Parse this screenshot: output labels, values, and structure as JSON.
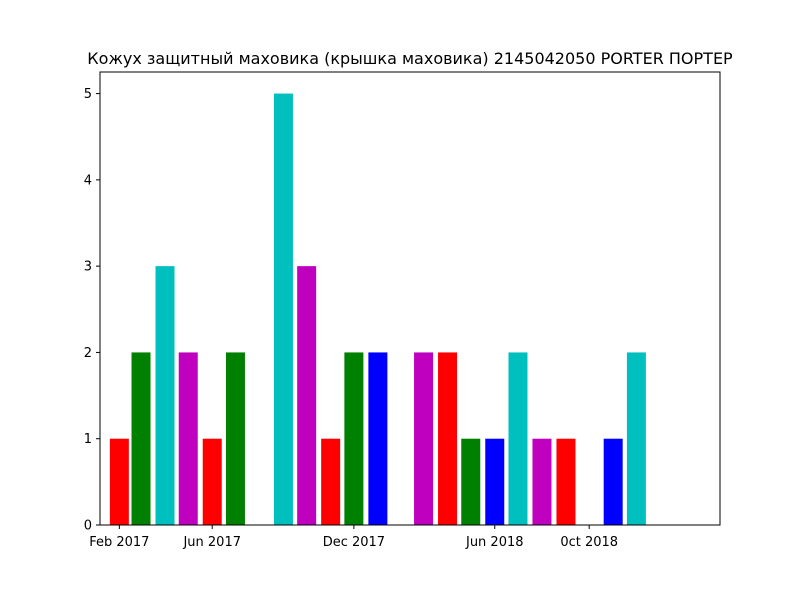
{
  "chart_data": {
    "type": "bar",
    "title": "Кожух защитный маховика (крышка маховика) 2145042050 PORTER ПОРТЕР",
    "xlabel": "",
    "ylabel": "",
    "ylim": [
      0,
      5.25
    ],
    "yticks": [
      0,
      1,
      2,
      3,
      4,
      5
    ],
    "xlim": [
      "2017-01-07",
      "2019-03-19"
    ],
    "xticks": [
      {
        "date": "2017-02-01",
        "label": "Feb 2017"
      },
      {
        "date": "2017-06-01",
        "label": "Jun 2017"
      },
      {
        "date": "2017-12-01",
        "label": "Dec 2017"
      },
      {
        "date": "2018-06-01",
        "label": "Jun 2018"
      },
      {
        "date": "2018-10-01",
        "label": "0ct 2018"
      }
    ],
    "grid": false,
    "bars": [
      {
        "date": "2017-02-01",
        "value": 1,
        "color": "#ff0000"
      },
      {
        "date": "2017-03-01",
        "value": 2,
        "color": "#008000"
      },
      {
        "date": "2017-04-01",
        "value": 3,
        "color": "#00bfbf"
      },
      {
        "date": "2017-05-01",
        "value": 2,
        "color": "#bf00bf"
      },
      {
        "date": "2017-06-01",
        "value": 1,
        "color": "#ff0000"
      },
      {
        "date": "2017-07-01",
        "value": 2,
        "color": "#008000"
      },
      {
        "date": "2017-09-01",
        "value": 5,
        "color": "#00bfbf"
      },
      {
        "date": "2017-10-01",
        "value": 3,
        "color": "#bf00bf"
      },
      {
        "date": "2017-11-01",
        "value": 1,
        "color": "#ff0000"
      },
      {
        "date": "2017-12-01",
        "value": 2,
        "color": "#008000"
      },
      {
        "date": "2018-01-01",
        "value": 2,
        "color": "#0000ff"
      },
      {
        "date": "2018-03-01",
        "value": 2,
        "color": "#bf00bf"
      },
      {
        "date": "2018-04-01",
        "value": 2,
        "color": "#ff0000"
      },
      {
        "date": "2018-05-01",
        "value": 1,
        "color": "#008000"
      },
      {
        "date": "2018-06-01",
        "value": 1,
        "color": "#0000ff"
      },
      {
        "date": "2018-07-01",
        "value": 2,
        "color": "#00bfbf"
      },
      {
        "date": "2018-08-01",
        "value": 1,
        "color": "#bf00bf"
      },
      {
        "date": "2018-09-01",
        "value": 1,
        "color": "#ff0000"
      },
      {
        "date": "2018-11-01",
        "value": 1,
        "color": "#0000ff"
      },
      {
        "date": "2018-12-01",
        "value": 2,
        "color": "#00bfbf"
      }
    ]
  }
}
